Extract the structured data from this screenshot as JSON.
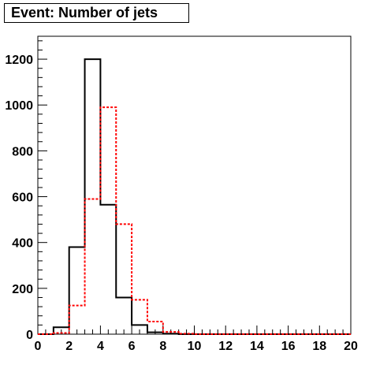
{
  "chart_data": {
    "type": "histogram",
    "title": "Event: Number of jets",
    "xlabel": "",
    "ylabel": "",
    "xlim": [
      0,
      20
    ],
    "ylim": [
      0,
      1300
    ],
    "x_ticks": [
      "0",
      "2",
      "4",
      "6",
      "8",
      "10",
      "12",
      "14",
      "16",
      "18",
      "20"
    ],
    "y_ticks": [
      "0",
      "200",
      "400",
      "600",
      "800",
      "1000",
      "1200"
    ],
    "bin_edges": [
      0,
      1,
      2,
      3,
      4,
      5,
      6,
      7,
      8,
      9,
      10,
      11,
      12,
      13,
      14,
      15,
      16,
      17,
      18,
      19,
      20
    ],
    "grid": false,
    "series": [
      {
        "style": "solid",
        "color": "#000000",
        "values": [
          0,
          30,
          380,
          1200,
          565,
          160,
          40,
          8,
          2,
          0,
          0,
          0,
          0,
          0,
          0,
          0,
          0,
          0,
          0,
          0
        ]
      },
      {
        "style": "dashed",
        "color": "#ff0000",
        "values": [
          0,
          5,
          125,
          590,
          990,
          480,
          150,
          55,
          10,
          2,
          0,
          0,
          0,
          0,
          0,
          0,
          0,
          0,
          0,
          0
        ]
      }
    ]
  }
}
